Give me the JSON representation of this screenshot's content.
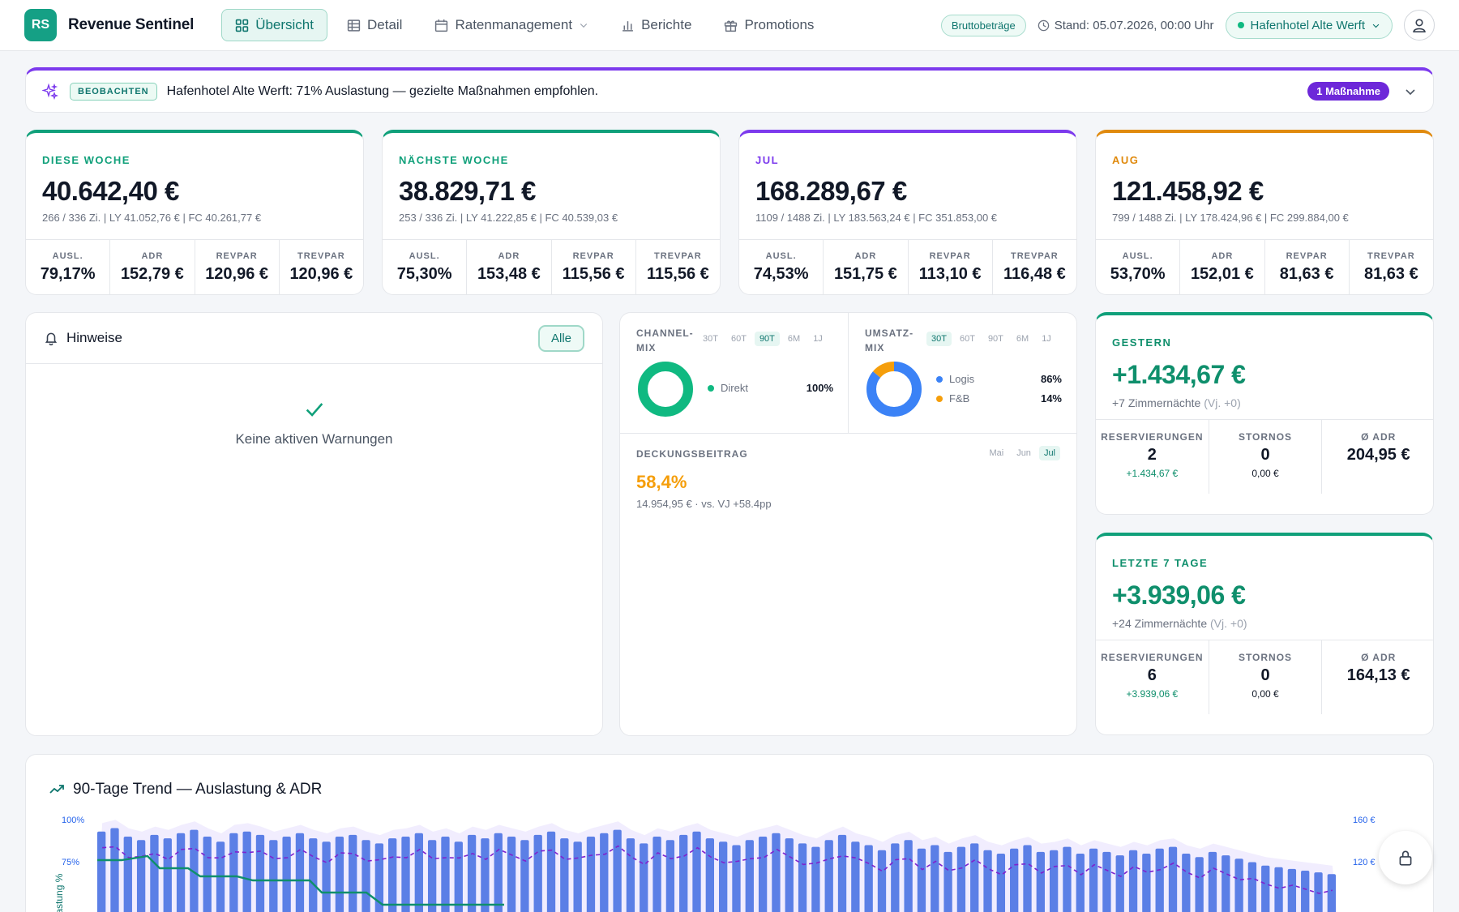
{
  "header": {
    "logo_text": "RS",
    "app_title": "Revenue Sentinel",
    "nav": [
      {
        "label": "Übersicht",
        "icon": "grid-icon"
      },
      {
        "label": "Detail",
        "icon": "table-icon"
      },
      {
        "label": "Ratenmanagement",
        "icon": "calendar-icon"
      },
      {
        "label": "Berichte",
        "icon": "bar-chart-icon"
      },
      {
        "label": "Promotions",
        "icon": "gift-icon"
      }
    ],
    "gross_badge": "Bruttobeträge",
    "stand": "Stand: 05.07.2026, 00:00 Uhr",
    "hotel": "Hafenhotel Alte Werft"
  },
  "banner": {
    "badge": "BEOBACHTEN",
    "text": "Hafenhotel Alte Werft: 71% Auslastung — gezielte Maßnahmen empfohlen.",
    "measures": "1 Maßnahme"
  },
  "kpis": [
    {
      "label": "DIESE WOCHE",
      "color": "#10a07a",
      "value": "40.642,40 €",
      "sub": "266 / 336 Zi.  |  LY 41.052,76 €  |  FC 40.261,77 €",
      "cells": [
        {
          "l": "AUSL.",
          "v": "79,17%"
        },
        {
          "l": "ADR",
          "v": "152,79 €"
        },
        {
          "l": "REVPAR",
          "v": "120,96 €"
        },
        {
          "l": "TREVPAR",
          "v": "120,96 €"
        }
      ]
    },
    {
      "label": "NÄCHSTE WOCHE",
      "color": "#10a07a",
      "value": "38.829,71 €",
      "sub": "253 / 336 Zi.  |  LY 41.222,85 €  |  FC 40.539,03 €",
      "cells": [
        {
          "l": "AUSL.",
          "v": "75,30%"
        },
        {
          "l": "ADR",
          "v": "153,48 €"
        },
        {
          "l": "REVPAR",
          "v": "115,56 €"
        },
        {
          "l": "TREVPAR",
          "v": "115,56 €"
        }
      ]
    },
    {
      "label": "JUL",
      "color": "#7c3aed",
      "value": "168.289,67 €",
      "sub": "1109 / 1488 Zi.  |  LY 183.563,24 €  |  FC 351.853,00 €",
      "cells": [
        {
          "l": "AUSL.",
          "v": "74,53%"
        },
        {
          "l": "ADR",
          "v": "151,75 €"
        },
        {
          "l": "REVPAR",
          "v": "113,10 €"
        },
        {
          "l": "TREVPAR",
          "v": "116,48 €"
        }
      ]
    },
    {
      "label": "AUG",
      "color": "#e08a0e",
      "value": "121.458,92 €",
      "sub": "799 / 1488 Zi.  |  LY 178.424,96 €  |  FC 299.884,00 €",
      "cells": [
        {
          "l": "AUSL.",
          "v": "53,70%"
        },
        {
          "l": "ADR",
          "v": "152,01 €"
        },
        {
          "l": "REVPAR",
          "v": "81,63 €"
        },
        {
          "l": "TREVPAR",
          "v": "81,63 €"
        }
      ]
    }
  ],
  "hinweise": {
    "title": "Hinweise",
    "filter": "Alle",
    "empty": "Keine aktiven Warnungen"
  },
  "channel_mix": {
    "title": "CHANNEL-MIX",
    "tabs": [
      "30T",
      "60T",
      "90T",
      "6M",
      "1J"
    ],
    "active_tab": "90T",
    "items": [
      {
        "name": "Direkt",
        "value": "100%",
        "share": 100,
        "color": "#10b981"
      }
    ]
  },
  "umsatz_mix": {
    "title": "UMSATZ-MIX",
    "tabs": [
      "30T",
      "60T",
      "90T",
      "6M",
      "1J"
    ],
    "active_tab": "30T",
    "items": [
      {
        "name": "Logis",
        "value": "86%",
        "share": 86,
        "color": "#3b82f6"
      },
      {
        "name": "F&B",
        "value": "14%",
        "share": 14,
        "color": "#f59e0b"
      }
    ]
  },
  "deckungsbeitrag": {
    "title": "DECKUNGSBEITRAG",
    "tabs": [
      "Mai",
      "Jun",
      "Jul"
    ],
    "active_tab": "Jul",
    "value": "58,4%",
    "sub": "14.954,95 € · vs. VJ +58.4pp"
  },
  "gestern": {
    "label": "GESTERN",
    "value": "+1.434,67 €",
    "sub": "+7 Zimmernächte",
    "sub_muted": "(Vj. +0)",
    "cells": [
      {
        "l": "RESERVIERUNGEN",
        "v": "2",
        "s": "+1.434,67 €",
        "sc": "#0f8f6c"
      },
      {
        "l": "STORNOS",
        "v": "0",
        "s": "0,00 €",
        "sc": "#111827"
      },
      {
        "l": "Ø ADR",
        "v": "204,95 €",
        "s": "",
        "sc": "#111827"
      }
    ]
  },
  "letzte7": {
    "label": "LETZTE 7 TAGE",
    "value": "+3.939,06 €",
    "sub": "+24 Zimmernächte",
    "sub_muted": "(Vj. +0)",
    "cells": [
      {
        "l": "RESERVIERUNGEN",
        "v": "6",
        "s": "+3.939,06 €",
        "sc": "#0f8f6c"
      },
      {
        "l": "STORNOS",
        "v": "0",
        "s": "0,00 €",
        "sc": "#111827"
      },
      {
        "l": "Ø ADR",
        "v": "164,13 €",
        "s": "",
        "sc": "#111827"
      }
    ]
  },
  "trend": {
    "title": "90-Tage Trend — Auslastung & ADR",
    "left_ticks": [
      "100%",
      "75%"
    ],
    "right_ticks": [
      "160 €",
      "120 €"
    ],
    "ylabel_left": "Auslastung %"
  },
  "chart_data": {
    "type": "bar",
    "title": "90-Tage Trend — Auslastung & ADR",
    "ylabel": "Auslastung %",
    "ylim_left": [
      0,
      100
    ],
    "ylim_right": [
      0,
      160
    ],
    "series": [
      {
        "name": "Auslastung",
        "values": [
          93,
          95,
          90,
          88,
          91,
          89,
          92,
          94,
          90,
          87,
          92,
          93,
          91,
          88,
          90,
          92,
          89,
          87,
          90,
          91,
          88,
          86,
          89,
          90,
          92,
          88,
          90,
          87,
          91,
          89,
          92,
          90,
          88,
          91,
          93,
          89,
          87,
          90,
          92,
          94,
          89,
          86,
          90,
          88,
          91,
          93,
          89,
          87,
          85,
          88,
          90,
          92,
          89,
          86,
          84,
          88,
          91,
          87,
          85,
          82,
          86,
          88,
          83,
          85,
          81,
          84,
          86,
          82,
          80,
          83,
          85,
          81,
          82,
          84,
          80,
          83,
          81,
          79,
          82,
          80,
          83,
          84,
          80,
          78,
          81,
          79,
          77,
          75,
          73,
          72,
          71,
          70,
          69,
          68
        ]
      }
    ]
  }
}
